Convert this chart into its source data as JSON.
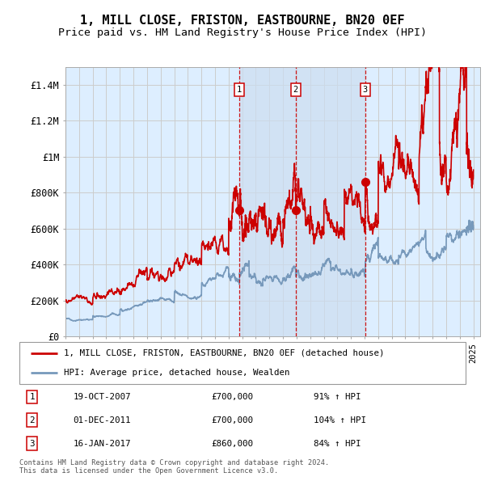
{
  "title": "1, MILL CLOSE, FRISTON, EASTBOURNE, BN20 0EF",
  "subtitle": "Price paid vs. HM Land Registry's House Price Index (HPI)",
  "ylim": [
    0,
    1500000
  ],
  "yticks": [
    0,
    200000,
    400000,
    600000,
    800000,
    1000000,
    1200000,
    1400000
  ],
  "ytick_labels": [
    "£0",
    "£200K",
    "£400K",
    "£600K",
    "£800K",
    "£1M",
    "£1.2M",
    "£1.4M"
  ],
  "xlim_start": 1995.0,
  "xlim_end": 2025.5,
  "sale_dates": [
    2007.79,
    2011.92,
    2017.04
  ],
  "sale_prices": [
    700000,
    700000,
    860000
  ],
  "sale_labels": [
    "1",
    "2",
    "3"
  ],
  "sale_info": [
    {
      "label": "1",
      "date": "19-OCT-2007",
      "price": "£700,000",
      "hpi": "91% ↑ HPI"
    },
    {
      "label": "2",
      "date": "01-DEC-2011",
      "price": "£700,000",
      "hpi": "104% ↑ HPI"
    },
    {
      "label": "3",
      "date": "16-JAN-2017",
      "price": "£860,000",
      "hpi": "84% ↑ HPI"
    }
  ],
  "legend_line1": "1, MILL CLOSE, FRISTON, EASTBOURNE, BN20 0EF (detached house)",
  "legend_line2": "HPI: Average price, detached house, Wealden",
  "red_line_color": "#cc0000",
  "blue_line_color": "#7799bb",
  "shade_color": "#ccddf0",
  "grid_color": "#cccccc",
  "bg_color": "#ddeeff",
  "footnote": "Contains HM Land Registry data © Crown copyright and database right 2024.\nThis data is licensed under the Open Government Licence v3.0.",
  "title_fontsize": 11,
  "subtitle_fontsize": 9.5
}
